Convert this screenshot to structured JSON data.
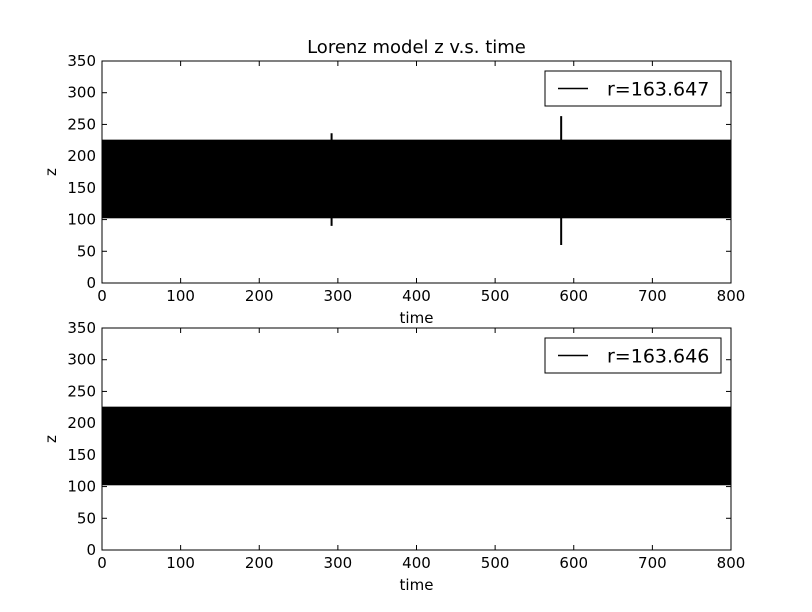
{
  "chart_data": [
    {
      "type": "line",
      "title": "Lorenz model z v.s. time",
      "xlabel": "time",
      "ylabel": "z",
      "xlim": [
        0,
        800
      ],
      "ylim": [
        0,
        350
      ],
      "xticks": [
        0,
        100,
        200,
        300,
        400,
        500,
        600,
        700,
        800
      ],
      "yticks": [
        0,
        50,
        100,
        150,
        200,
        250,
        300,
        350
      ],
      "legend_position": "top-right",
      "series": [
        {
          "name": "r=163.647",
          "color": "#000000",
          "band": {
            "x_start": 0,
            "x_end": 800,
            "z_min": 102,
            "z_max": 226
          },
          "spikes": [
            {
              "x": 292,
              "z_max": 236,
              "z_min": 90
            },
            {
              "x": 584,
              "z_max": 263,
              "z_min": 60
            }
          ]
        }
      ]
    },
    {
      "type": "line",
      "title": "",
      "xlabel": "time",
      "ylabel": "z",
      "xlim": [
        0,
        800
      ],
      "ylim": [
        0,
        350
      ],
      "xticks": [
        0,
        100,
        200,
        300,
        400,
        500,
        600,
        700,
        800
      ],
      "yticks": [
        0,
        50,
        100,
        150,
        200,
        250,
        300,
        350
      ],
      "legend_position": "top-right",
      "series": [
        {
          "name": "r=163.646",
          "color": "#000000",
          "band": {
            "x_start": 0,
            "x_end": 800,
            "z_min": 102,
            "z_max": 226
          },
          "spikes": []
        }
      ]
    }
  ]
}
